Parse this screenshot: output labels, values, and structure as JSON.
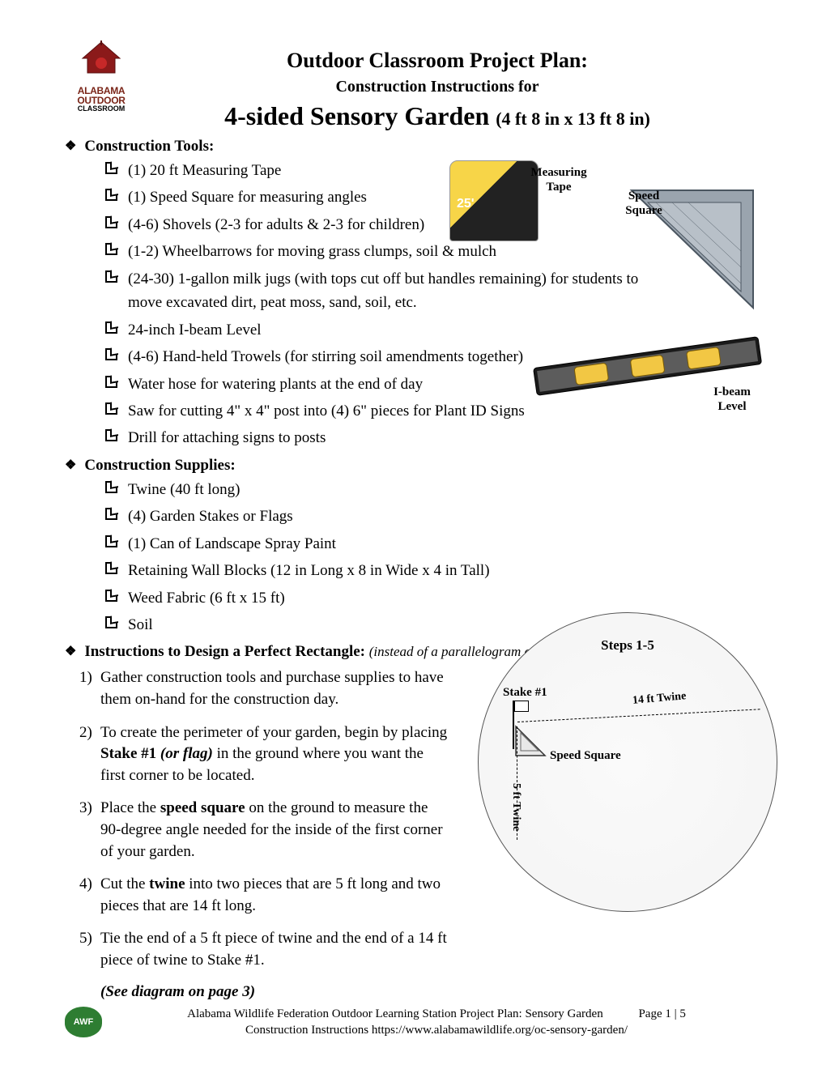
{
  "logo": {
    "line1": "ALABAMA",
    "line2": "OUTDOOR",
    "line3": "CLASSROOM"
  },
  "header": {
    "line1": "Outdoor Classroom Project Plan:",
    "line2": "Construction Instructions for",
    "line3_main": "4-sided Sensory Garden ",
    "line3_dims": "(4 ft 8 in x 13 ft 8 in)"
  },
  "sections": {
    "tools_title": "Construction Tools:",
    "supplies_title": "Construction Supplies:",
    "instructions_title": "Instructions to Design a Perfect Rectangle: ",
    "instructions_note": "(instead of a parallelogram or trapezoid)"
  },
  "tools": [
    "(1) 20 ft Measuring Tape",
    "(1) Speed Square for measuring angles",
    "(4-6) Shovels (2-3 for adults & 2-3 for children)",
    "(1-2) Wheelbarrows for moving grass clumps, soil & mulch",
    "(24-30) 1-gallon milk jugs (with tops cut off but handles remaining) for students to move excavated dirt, peat moss, sand, soil, etc.",
    "24-inch I-beam Level",
    "(4-6) Hand-held Trowels (for stirring soil amendments together)",
    "Water hose for watering plants at the end of day",
    "Saw for cutting 4\" x 4\" post into (4) 6\" pieces for Plant ID Signs",
    "Drill for attaching signs to posts"
  ],
  "supplies": [
    "Twine (40 ft long)",
    "(4) Garden Stakes or Flags",
    "(1) Can of Landscape Spray Paint",
    "Retaining Wall Blocks (12 in Long x 8 in Wide x 4 in Tall)",
    "Weed Fabric (6 ft x 15 ft)",
    "Soil"
  ],
  "steps": {
    "s1": "Gather construction tools and purchase supplies to have them on-hand for the construction day.",
    "s2_a": "To create the perimeter of your garden, begin by placing ",
    "s2_b": "Stake #1 ",
    "s2_c": "(or flag)",
    "s2_d": " in the ground where you want the first corner to be located.",
    "s3_a": "Place the ",
    "s3_b": "speed square",
    "s3_c": " on the ground to measure the 90-degree angle needed for the inside of the first corner of your garden.",
    "s4_a": "Cut the ",
    "s4_b": "twine",
    "s4_c": " into two pieces that are 5 ft long and two pieces that are 14 ft long.",
    "s5": "Tie the end of a 5 ft piece of twine and the end of a 14 ft piece of twine to Stake #1.",
    "see": "(See diagram on page 3)"
  },
  "captions": {
    "tape": "Measuring Tape",
    "square": "Speed Square",
    "level": "I-beam Level"
  },
  "diagram": {
    "title": "Steps 1-5",
    "stake": "Stake #1",
    "twine_h": "14 ft Twine",
    "square": "Speed Square",
    "twine_v": "5 ft Twine"
  },
  "footer": {
    "line1": "Alabama Wildlife Federation Outdoor Learning Station Project Plan: Sensory Garden",
    "line2a": "Construction Instructions        ",
    "line2b": "https://www.alabamawildlife.org/oc-sensory-garden/",
    "page": "Page 1 | 5",
    "badge": "AWF"
  },
  "colors": {
    "logo_red": "#8b1a1a",
    "awf_green": "#2e7d32"
  }
}
